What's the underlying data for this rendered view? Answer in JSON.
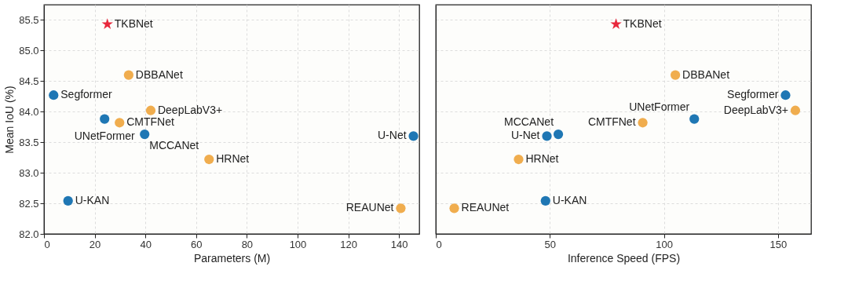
{
  "chart_data": [
    {
      "type": "scatter",
      "xlabel": "Parameters (M)",
      "ylabel": "Mean IoU (%)",
      "xlim": [
        0,
        148
      ],
      "xticks": [
        0,
        20,
        40,
        60,
        80,
        100,
        120,
        140
      ],
      "ylim": [
        82.0,
        85.75
      ],
      "yticks": [
        {
          "value": 82,
          "label": "82.0"
        },
        82.5,
        {
          "value": 83,
          "label": "83.0"
        },
        83.5,
        {
          "value": 84,
          "label": "84.0"
        },
        84.5,
        {
          "value": 85,
          "label": "85.0"
        },
        85.5
      ],
      "grid": true,
      "series": [
        {
          "color": "#1f77b4",
          "marker": "circle",
          "x": [
            3.8,
            23.9,
            39.7,
            145.7,
            9.5
          ],
          "values": [
            84.27,
            83.88,
            83.63,
            83.6,
            82.54
          ]
        },
        {
          "color": "#f0ad4e",
          "marker": "circle",
          "x": [
            33.4,
            42.1,
            29.8,
            65.1,
            140.7
          ],
          "values": [
            84.6,
            84.02,
            83.82,
            83.22,
            82.42
          ]
        },
        {
          "color": "#e8283c",
          "marker": "star",
          "x": [
            25.0
          ],
          "values": [
            85.43
          ]
        }
      ],
      "annotations": [
        {
          "text": "TKBNet",
          "x": 25.0,
          "y": 85.43
        },
        {
          "text": "DBBANet",
          "x": 33.4,
          "y": 84.6
        },
        {
          "text": "Segformer",
          "x": 3.8,
          "y": 84.27
        },
        {
          "text": "DeepLabV3+",
          "x": 42.1,
          "y": 84.02
        },
        {
          "text": "UNetFormer",
          "x": 23.9,
          "y": 83.88
        },
        {
          "text": "CMTFNet",
          "x": 29.8,
          "y": 83.82
        },
        {
          "text": "MCCANet",
          "x": 39.7,
          "y": 83.63
        },
        {
          "text": "U-Net",
          "x": 145.7,
          "y": 83.6
        },
        {
          "text": "HRNet",
          "x": 65.1,
          "y": 83.22
        },
        {
          "text": "U-KAN",
          "x": 9.5,
          "y": 82.54
        },
        {
          "text": "REAUNet",
          "x": 140.7,
          "y": 82.42
        }
      ]
    },
    {
      "type": "scatter",
      "xlabel": "Inference Speed (FPS)",
      "xlim": [
        0,
        164.5
      ],
      "xticks": [
        0,
        50,
        100,
        150
      ],
      "ylim": [
        82.0,
        85.75
      ],
      "yticks": [
        82,
        82.5,
        83,
        83.5,
        84,
        84.5,
        85,
        85.5
      ],
      "grid": true,
      "tick_labels": "x",
      "series": [
        {
          "color": "#1f77b4",
          "marker": "circle",
          "x": [
            153.3,
            113.3,
            53.7,
            48.7,
            48.1
          ],
          "values": [
            84.27,
            83.88,
            83.63,
            83.6,
            82.54
          ]
        },
        {
          "color": "#f0ad4e",
          "marker": "circle",
          "x": [
            105.0,
            157.6,
            90.7,
            36.3,
            8.1
          ],
          "values": [
            84.6,
            84.02,
            83.82,
            83.22,
            82.42
          ]
        },
        {
          "color": "#e8283c",
          "marker": "star",
          "x": [
            79.0
          ],
          "values": [
            85.43
          ]
        }
      ],
      "annotations": [
        {
          "text": "TKBNet",
          "x": 79.0,
          "y": 85.43
        },
        {
          "text": "DBBANet",
          "x": 105.0,
          "y": 84.6
        },
        {
          "text": "Segformer",
          "x": 153.3,
          "y": 84.27
        },
        {
          "text": "DeepLabV3+",
          "x": 157.6,
          "y": 84.02
        },
        {
          "text": "UNetFormer",
          "x": 113.3,
          "y": 83.88
        },
        {
          "text": "CMTFNet",
          "x": 90.7,
          "y": 83.82
        },
        {
          "text": "MCCANet",
          "x": 53.7,
          "y": 83.63
        },
        {
          "text": "U-Net",
          "x": 48.7,
          "y": 83.6
        },
        {
          "text": "HRNet",
          "x": 36.3,
          "y": 83.22
        },
        {
          "text": "U-KAN",
          "x": 48.1,
          "y": 82.54
        },
        {
          "text": "REAUNet",
          "x": 8.1,
          "y": 82.42
        }
      ]
    }
  ]
}
